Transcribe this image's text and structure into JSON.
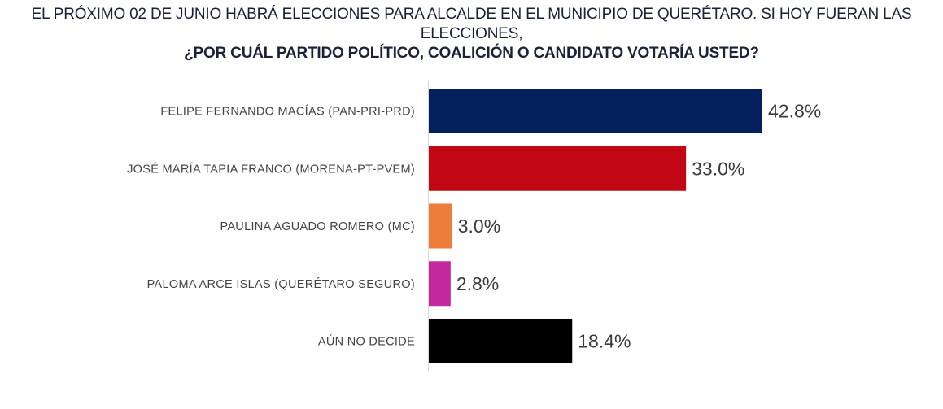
{
  "chart_data": {
    "type": "bar",
    "orientation": "horizontal",
    "title": "EL PRÓXIMO 02 DE JUNIO HABRÁ ELECCIONES PARA ALCALDE EN EL MUNICIPIO DE QUERÉTARO. SI HOY FUERAN LAS ELECCIONES,",
    "subtitle": "¿POR CUÁL PARTIDO POLÍTICO, COALICIÓN O CANDIDATO VOTARÍA USTED?",
    "categories": [
      "FELIPE FERNANDO MACÍAS (PAN-PRI-PRD)",
      "JOSÉ MARÍA TAPIA FRANCO (MORENA-PT-PVEM)",
      "PAULINA AGUADO ROMERO (MC)",
      "PALOMA ARCE ISLAS (QUERÉTARO SEGURO)",
      "AÚN NO DECIDE"
    ],
    "values": [
      42.8,
      33.0,
      3.0,
      2.8,
      18.4
    ],
    "value_labels": [
      "42.8%",
      "33.0%",
      "3.0%",
      "2.8%",
      "18.4%"
    ],
    "colors": [
      "#04215e",
      "#c00713",
      "#ed7d3b",
      "#c3289e",
      "#000000"
    ],
    "xlabel": "",
    "ylabel": "",
    "xlim": [
      0,
      50
    ],
    "grid": false,
    "legend": "none"
  }
}
